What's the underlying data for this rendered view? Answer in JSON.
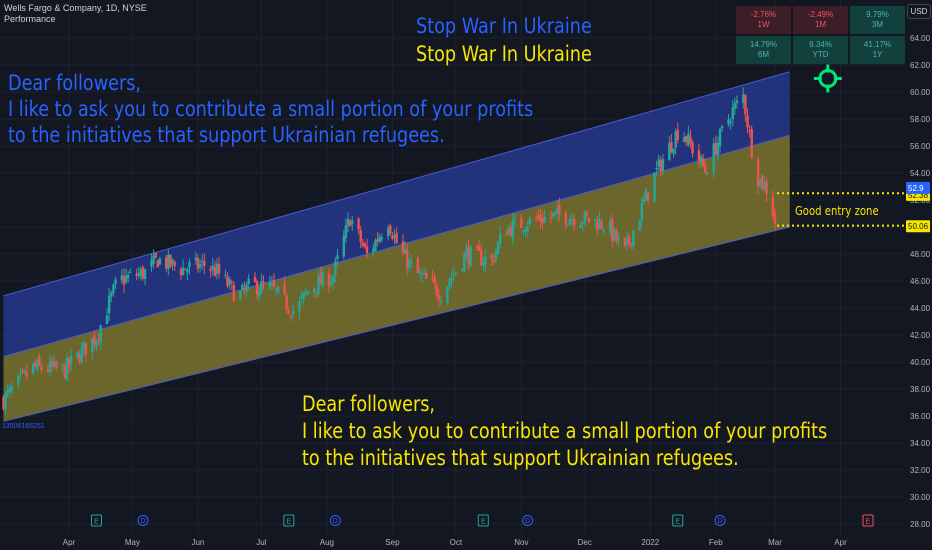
{
  "header": {
    "symbol": "Wells Fargo & Company, 1D, NYSE",
    "indicator": "Performance",
    "currency": "USD"
  },
  "performance": [
    {
      "value": "-2.76%",
      "period": "1W",
      "tone": "neg"
    },
    {
      "value": "-2.49%",
      "period": "1M",
      "tone": "neg"
    },
    {
      "value": "9.79%",
      "period": "3M",
      "tone": "pos"
    },
    {
      "value": "14.79%",
      "period": "6M",
      "tone": "pos"
    },
    {
      "value": "9.34%",
      "period": "YTD",
      "tone": "pos"
    },
    {
      "value": "41.17%",
      "period": "1Y",
      "tone": "pos"
    }
  ],
  "annotations": {
    "stop_war_1": "Stop War In Ukraine",
    "stop_war_2": "Stop War In Ukraine",
    "dear_top_1": "Dear followers,",
    "dear_top_2": "I like to ask you to contribute a small portion of your profits",
    "dear_top_3": "to the initiatives that support Ukrainian refugees.",
    "dear_bot_1": "Dear followers,",
    "dear_bot_2": "I like to ask you to contribute a small portion of your profits",
    "dear_bot_3": "to the initiatives that support Ukrainian refugees.",
    "entry_zone": "Good entry zone",
    "volume_label": "13506166251"
  },
  "colors": {
    "up": "#26a69a",
    "down": "#ef5350",
    "blue_channel": "#2a3f9e",
    "yellow_channel": "#8d8530",
    "channel_line": "#4a5bd0",
    "blue_text": "#2962ff",
    "yellow_text": "#f7e600",
    "target": "#00e676"
  },
  "chart_data": {
    "type": "candlestick",
    "title": "Wells Fargo & Company, 1D, NYSE",
    "y_axis": {
      "min": 28,
      "max": 64,
      "ticks": [
        "28.00",
        "30.00",
        "32.00",
        "34.00",
        "36.00",
        "38.00",
        "40.00",
        "42.00",
        "44.00",
        "46.00",
        "48.00",
        "50.00",
        "52.00",
        "54.00",
        "56.00",
        "58.00",
        "60.00",
        "62.00",
        "64.00"
      ]
    },
    "x_axis": {
      "labels": [
        {
          "label": "Apr",
          "date": "2021-04-01"
        },
        {
          "label": "May",
          "date": "2021-05-01"
        },
        {
          "label": "Jun",
          "date": "2021-06-01"
        },
        {
          "label": "Jul",
          "date": "2021-07-01"
        },
        {
          "label": "Aug",
          "date": "2021-08-01"
        },
        {
          "label": "Sep",
          "date": "2021-09-01"
        },
        {
          "label": "Oct",
          "date": "2021-10-01"
        },
        {
          "label": "Nov",
          "date": "2021-11-01"
        },
        {
          "label": "Dec",
          "date": "2021-12-01"
        },
        {
          "label": "2022",
          "date": "2022-01-01"
        },
        {
          "label": "Feb",
          "date": "2022-02-01"
        },
        {
          "label": "Mar",
          "date": "2022-03-01"
        },
        {
          "label": "Apr",
          "date": "2022-04-01"
        }
      ]
    },
    "price_labels": [
      {
        "text": "52.38",
        "price": 52.38,
        "color": "#f7e600"
      },
      {
        "text": "52.9",
        "price": 52.9,
        "color": "#2962ff"
      },
      {
        "text": "50.06",
        "price": 50.06,
        "color": "#f7e600"
      }
    ],
    "channels": [
      {
        "name": "upper",
        "points": [
          {
            "date": "2021-03-01",
            "price": 44.9
          },
          {
            "date": "2022-03-08",
            "price": 61.5
          }
        ]
      },
      {
        "name": "middle",
        "points": [
          {
            "date": "2021-03-01",
            "price": 40.4
          },
          {
            "date": "2022-03-08",
            "price": 56.8
          }
        ]
      },
      {
        "name": "lower",
        "points": [
          {
            "date": "2021-03-01",
            "price": 35.6
          },
          {
            "date": "2022-03-08",
            "price": 50.0
          }
        ]
      }
    ],
    "entry_levels": [
      52.5,
      50.1
    ],
    "events": [
      {
        "type": "E",
        "date": "2021-04-14"
      },
      {
        "type": "D",
        "date": "2021-05-06"
      },
      {
        "type": "E",
        "date": "2021-07-14"
      },
      {
        "type": "D",
        "date": "2021-08-05"
      },
      {
        "type": "E",
        "date": "2021-10-14"
      },
      {
        "type": "D",
        "date": "2021-11-04"
      },
      {
        "type": "E",
        "date": "2022-01-14"
      },
      {
        "type": "D",
        "date": "2022-02-03"
      },
      {
        "type": "E",
        "date": "2022-04-14"
      }
    ],
    "target": {
      "date": "2022-03-26",
      "price": 61.0
    },
    "series": [
      {
        "date": "2021-03-01",
        "close": 37.2
      },
      {
        "date": "2021-03-15",
        "close": 39.6
      },
      {
        "date": "2021-03-30",
        "close": 39.4
      },
      {
        "date": "2021-04-14",
        "close": 41.9
      },
      {
        "date": "2021-04-24",
        "close": 46.0
      },
      {
        "date": "2021-05-08",
        "close": 46.7
      },
      {
        "date": "2021-05-13",
        "close": 47.6
      },
      {
        "date": "2021-05-24",
        "close": 46.9
      },
      {
        "date": "2021-06-04",
        "close": 47.2
      },
      {
        "date": "2021-06-10",
        "close": 46.7
      },
      {
        "date": "2021-06-20",
        "close": 44.8
      },
      {
        "date": "2021-06-26",
        "close": 45.7
      },
      {
        "date": "2021-07-06",
        "close": 45.4
      },
      {
        "date": "2021-07-17",
        "close": 43.7
      },
      {
        "date": "2021-07-24",
        "close": 45.5
      },
      {
        "date": "2021-08-04",
        "close": 46.4
      },
      {
        "date": "2021-08-12",
        "close": 50.7
      },
      {
        "date": "2021-08-20",
        "close": 47.9
      },
      {
        "date": "2021-08-30",
        "close": 50.5
      },
      {
        "date": "2021-09-04",
        "close": 48.4
      },
      {
        "date": "2021-09-12",
        "close": 46.6
      },
      {
        "date": "2021-09-24",
        "close": 45.1
      },
      {
        "date": "2021-10-06",
        "close": 48.0
      },
      {
        "date": "2021-10-18",
        "close": 47.5
      },
      {
        "date": "2021-10-24",
        "close": 49.8
      },
      {
        "date": "2021-11-06",
        "close": 50.5
      },
      {
        "date": "2021-11-20",
        "close": 50.9
      },
      {
        "date": "2021-12-01",
        "close": 50.6
      },
      {
        "date": "2021-12-11",
        "close": 50.2
      },
      {
        "date": "2021-12-20",
        "close": 48.1
      },
      {
        "date": "2022-01-03",
        "close": 53.8
      },
      {
        "date": "2022-01-15",
        "close": 57.4
      },
      {
        "date": "2022-01-27",
        "close": 54.2
      },
      {
        "date": "2022-02-08",
        "close": 58.4
      },
      {
        "date": "2022-02-14",
        "close": 59.7
      },
      {
        "date": "2022-02-20",
        "close": 53.9
      },
      {
        "date": "2022-02-26",
        "close": 52.6
      },
      {
        "date": "2022-03-01",
        "close": 50.4
      }
    ]
  }
}
